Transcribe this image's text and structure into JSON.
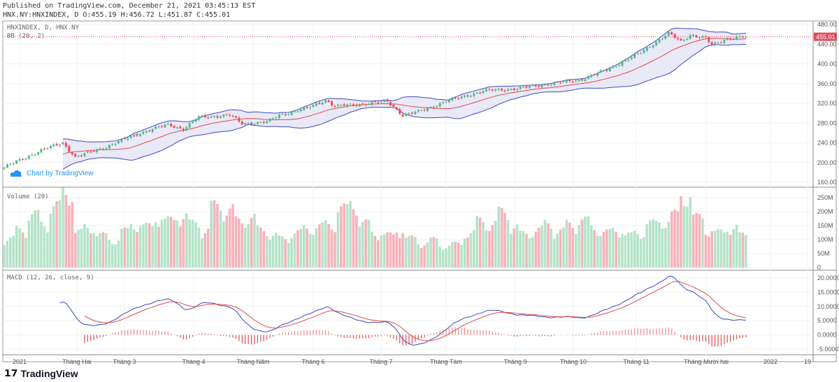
{
  "header": {
    "published": "Published on TradingView.com, December 21, 2021 03:45:13 EST",
    "ohlc": "HNX.NY:HNXINDEX, D O:455.19 H:456.72 L:451.87 C:455.01"
  },
  "watermark": "Chart by TradingView",
  "footer_logo": "TradingView",
  "colors": {
    "up": "#53b987",
    "down": "#eb4d5c",
    "bb_band": "#3d49c0",
    "bb_basis": "#e04b4b",
    "bb_fill": "#e3e3f5",
    "macd": "#3d49c0",
    "signal": "#e04b4b",
    "hist": "#e04b4b",
    "last_price": "#e04b5c"
  },
  "chart_data": [
    {
      "type": "candlestick",
      "title": "HNXINDEX, D, HNX.NY",
      "indicator": "BB (20, 2)",
      "last_price": "455.01",
      "ylim": [
        150,
        490
      ],
      "yticks": [
        "480.00",
        "440.00",
        "400.00",
        "360.00",
        "320.00",
        "280.00",
        "240.00",
        "200.00",
        "160.00"
      ],
      "close_anchors": [
        [
          0,
          190
        ],
        [
          12,
          225
        ],
        [
          19,
          240
        ],
        [
          23,
          211
        ],
        [
          33,
          232
        ],
        [
          44,
          260
        ],
        [
          53,
          277
        ],
        [
          58,
          268
        ],
        [
          63,
          292
        ],
        [
          73,
          296
        ],
        [
          77,
          279
        ],
        [
          85,
          282
        ],
        [
          89,
          296
        ],
        [
          98,
          310
        ],
        [
          104,
          327
        ],
        [
          107,
          314
        ],
        [
          118,
          320
        ],
        [
          124,
          324
        ],
        [
          129,
          296
        ],
        [
          134,
          303
        ],
        [
          143,
          324
        ],
        [
          155,
          345
        ],
        [
          166,
          350
        ],
        [
          177,
          360
        ],
        [
          186,
          367
        ],
        [
          195,
          388
        ],
        [
          206,
          423
        ],
        [
          215,
          462
        ],
        [
          219,
          445
        ],
        [
          222,
          459
        ],
        [
          227,
          452
        ],
        [
          229,
          437
        ],
        [
          234,
          452
        ],
        [
          240,
          455
        ]
      ]
    },
    {
      "type": "bar",
      "title": "Volume (20)",
      "ylim": [
        0,
        270
      ],
      "yticks": [
        "250M",
        "200M",
        "150M",
        "100M",
        "50M",
        "0"
      ],
      "volume_anchors_millions": [
        100,
        130,
        180,
        150,
        210,
        260,
        120,
        140,
        110,
        95,
        125,
        150,
        140,
        175,
        160,
        180,
        150,
        130,
        210,
        200,
        160,
        170,
        130,
        110,
        100,
        120,
        135,
        140,
        150,
        200,
        225,
        150,
        120,
        110,
        130,
        100,
        85,
        95,
        75,
        80,
        120,
        160,
        150,
        190,
        140,
        115,
        130,
        150,
        125,
        150,
        160,
        140,
        120,
        130,
        110,
        120,
        150,
        160,
        180,
        250,
        170,
        130,
        120,
        140,
        110
      ]
    },
    {
      "type": "line",
      "title": "MACD (12, 26, close, 9)",
      "ylim": [
        -7,
        22
      ],
      "yticks": [
        "20.0000",
        "15.0000",
        "10.0000",
        "5.0000",
        "0.0000",
        "-5.0000"
      ]
    }
  ],
  "xaxis": [
    "2021",
    "Tháng Hai",
    "Tháng 3",
    "Tháng 4",
    "Tháng Năm",
    "Tháng 6",
    "Tháng 7",
    "Tháng Tám",
    "Tháng 9",
    "Tháng 10",
    "Tháng 11",
    "Tháng Mười hai",
    "2022",
    "19"
  ]
}
